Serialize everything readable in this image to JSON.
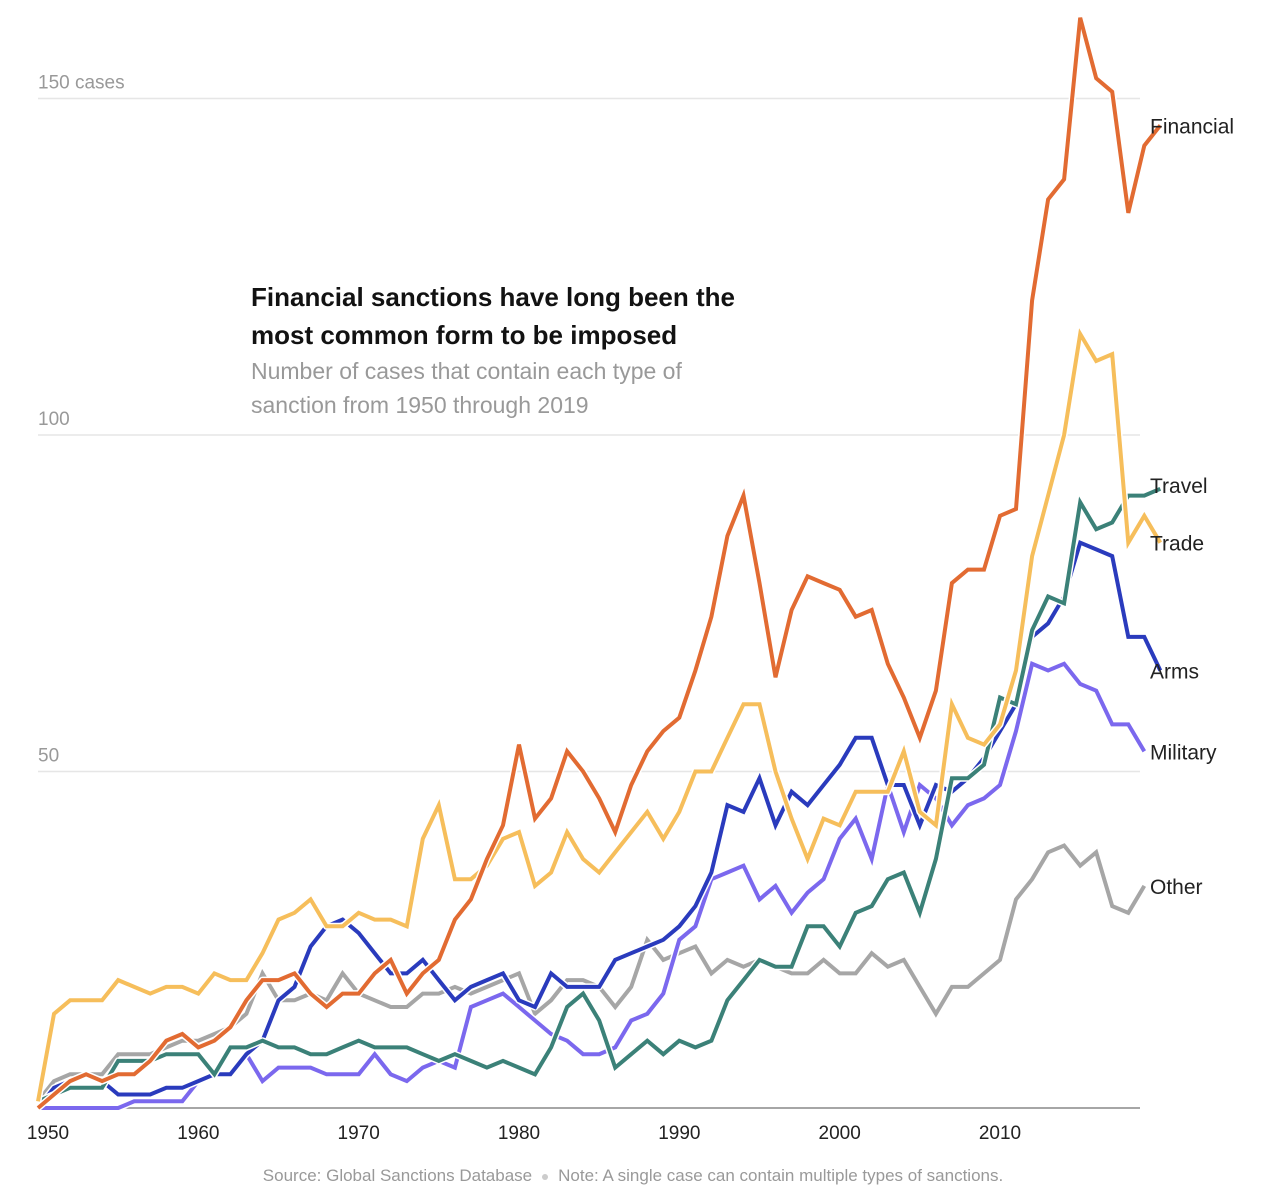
{
  "chart_data": {
    "type": "line",
    "title": "Financial sanctions have long been the most common form to be imposed",
    "subtitle": "Number of cases that contain each type of sanction from 1950 through 2019",
    "title_lines": [
      "Financial sanctions have long been the",
      "most common form to be imposed"
    ],
    "subtitle_lines": [
      "Number of cases that contain each type of",
      "sanction from 1950 through 2019"
    ],
    "xlabel": "",
    "ylabel": "cases",
    "xlim": [
      1950,
      2019
    ],
    "ylim": [
      0,
      160
    ],
    "grid": true,
    "y_ticks": [
      {
        "value": 50,
        "label": "50"
      },
      {
        "value": 100,
        "label": "100"
      },
      {
        "value": 150,
        "label": "150 cases"
      }
    ],
    "x_ticks": [
      {
        "value": 1950,
        "label": "1950"
      },
      {
        "value": 1960,
        "label": "1960"
      },
      {
        "value": 1970,
        "label": "1970"
      },
      {
        "value": 1980,
        "label": "1980"
      },
      {
        "value": 1990,
        "label": "1990"
      },
      {
        "value": 2000,
        "label": "2000"
      },
      {
        "value": 2010,
        "label": "2010"
      }
    ],
    "x_start": 1950,
    "series": [
      {
        "name": "Other",
        "label": "Other",
        "color": "#a6a6a6",
        "values": [
          1,
          4,
          5,
          5,
          5,
          8,
          8,
          8,
          9,
          10,
          10,
          11,
          12,
          14,
          20,
          16,
          16,
          17,
          16,
          20,
          17,
          16,
          15,
          15,
          17,
          17,
          18,
          17,
          18,
          19,
          20,
          14,
          16,
          19,
          19,
          18,
          15,
          18,
          25,
          22,
          23,
          24,
          20,
          22,
          21,
          22,
          21,
          20,
          20,
          22,
          20,
          20,
          23,
          21,
          22,
          18,
          14,
          18,
          18,
          20,
          22,
          31,
          34,
          38,
          39,
          36,
          38,
          30,
          29,
          33
        ]
      },
      {
        "name": "Military",
        "label": "Military",
        "color": "#7b68ee",
        "values": [
          0,
          0,
          0,
          0,
          0,
          0,
          1,
          1,
          1,
          1,
          4,
          5,
          5,
          8,
          4,
          6,
          6,
          6,
          5,
          5,
          5,
          8,
          5,
          4,
          6,
          7,
          6,
          15,
          16,
          17,
          15,
          13,
          11,
          10,
          8,
          8,
          9,
          13,
          14,
          17,
          25,
          27,
          34,
          35,
          36,
          31,
          33,
          29,
          32,
          34,
          40,
          43,
          37,
          48,
          41,
          48,
          46,
          42,
          45,
          46,
          48,
          56,
          66,
          65,
          66,
          63,
          62,
          57,
          57,
          53
        ]
      },
      {
        "name": "Arms",
        "label": "Arms",
        "color": "#2a3bbd",
        "values": [
          0,
          3,
          4,
          5,
          4,
          2,
          2,
          2,
          3,
          3,
          4,
          5,
          5,
          8,
          10,
          16,
          18,
          24,
          27,
          28,
          26,
          23,
          20,
          20,
          22,
          19,
          16,
          18,
          19,
          20,
          16,
          15,
          20,
          18,
          18,
          18,
          22,
          23,
          24,
          25,
          27,
          30,
          35,
          45,
          44,
          49,
          42,
          47,
          45,
          48,
          51,
          55,
          55,
          48,
          48,
          42,
          48,
          47,
          49,
          52,
          56,
          60,
          70,
          72,
          76,
          84,
          83,
          82,
          70,
          70,
          65
        ]
      },
      {
        "name": "Travel",
        "label": "Travel",
        "color": "#3b8178",
        "values": [
          1,
          2,
          3,
          3,
          3,
          7,
          7,
          7,
          8,
          8,
          8,
          5,
          9,
          9,
          10,
          9,
          9,
          8,
          8,
          9,
          10,
          9,
          9,
          9,
          8,
          7,
          8,
          7,
          6,
          7,
          6,
          5,
          9,
          15,
          17,
          13,
          6,
          8,
          10,
          8,
          10,
          9,
          10,
          16,
          19,
          22,
          21,
          21,
          27,
          27,
          24,
          29,
          30,
          34,
          35,
          29,
          37,
          49,
          49,
          51,
          61,
          60,
          71,
          76,
          75,
          90,
          86,
          87,
          91,
          91,
          92
        ]
      },
      {
        "name": "Trade",
        "label": "Trade",
        "color": "#f6be5b",
        "values": [
          1,
          14,
          16,
          16,
          16,
          19,
          18,
          17,
          18,
          18,
          17,
          20,
          19,
          19,
          23,
          28,
          29,
          31,
          27,
          27,
          29,
          28,
          28,
          27,
          40,
          45,
          34,
          34,
          36,
          40,
          41,
          33,
          35,
          41,
          37,
          35,
          38,
          41,
          44,
          40,
          44,
          50,
          50,
          55,
          60,
          60,
          50,
          43,
          37,
          43,
          42,
          47,
          47,
          47,
          53,
          44,
          42,
          60,
          55,
          54,
          57,
          65,
          82,
          91,
          100,
          115,
          111,
          112,
          84,
          88,
          84
        ]
      },
      {
        "name": "Financial",
        "label": "Financial",
        "color": "#e26b32",
        "values": [
          0,
          2,
          4,
          5,
          4,
          5,
          5,
          7,
          10,
          11,
          9,
          10,
          12,
          16,
          19,
          19,
          20,
          17,
          15,
          17,
          17,
          20,
          22,
          17,
          20,
          22,
          28,
          31,
          37,
          42,
          54,
          43,
          46,
          53,
          50,
          46,
          41,
          48,
          53,
          56,
          58,
          65,
          73,
          85,
          91,
          78,
          64,
          74,
          79,
          78,
          77,
          73,
          74,
          66,
          61,
          55,
          62,
          78,
          80,
          80,
          88,
          89,
          120,
          135,
          138,
          162,
          153,
          151,
          133,
          143,
          146
        ]
      }
    ]
  },
  "footer": {
    "source": "Source: Global Sanctions Database",
    "note": "Note: A single case can contain multiple types of sanctions."
  }
}
